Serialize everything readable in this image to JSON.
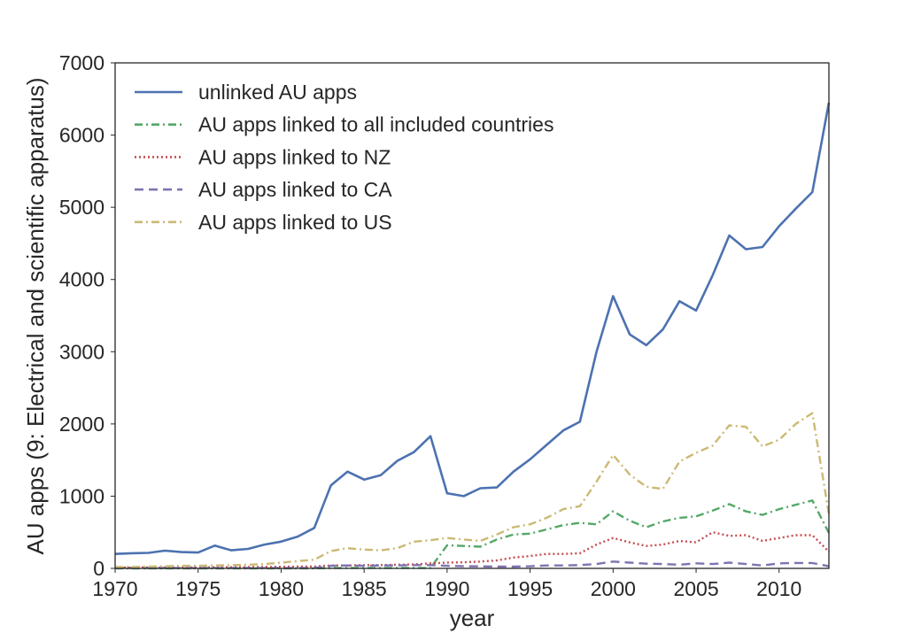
{
  "chart_data": {
    "type": "line",
    "xlabel": "year",
    "ylabel": "AU apps (9: Electrical and scientific apparatus)",
    "xlim": [
      1970,
      2013
    ],
    "ylim": [
      0,
      7000
    ],
    "xticks": [
      1970,
      1975,
      1980,
      1985,
      1990,
      1995,
      2000,
      2005,
      2010
    ],
    "yticks": [
      0,
      1000,
      2000,
      3000,
      4000,
      5000,
      6000,
      7000
    ],
    "grid": false,
    "legend_position": "top-left",
    "x": [
      1970,
      1971,
      1972,
      1973,
      1974,
      1975,
      1976,
      1977,
      1978,
      1979,
      1980,
      1981,
      1982,
      1983,
      1984,
      1985,
      1986,
      1987,
      1988,
      1989,
      1990,
      1991,
      1992,
      1993,
      1994,
      1995,
      1996,
      1997,
      1998,
      1999,
      2000,
      2001,
      2002,
      2003,
      2004,
      2005,
      2006,
      2007,
      2008,
      2009,
      2010,
      2011,
      2012,
      2013
    ],
    "series": [
      {
        "name": "unlinked AU apps",
        "color": "#4c72b0",
        "style": "solid",
        "values": [
          200,
          210,
          215,
          245,
          225,
          220,
          315,
          250,
          270,
          330,
          370,
          440,
          560,
          1150,
          1340,
          1230,
          1290,
          1490,
          1610,
          1830,
          1040,
          1000,
          1110,
          1120,
          1340,
          1510,
          1710,
          1910,
          2030,
          3000,
          3770,
          3240,
          3090,
          3310,
          3700,
          3570,
          4060,
          4610,
          4420,
          4450,
          4740,
          4980,
          5210,
          6450
        ]
      },
      {
        "name": "AU apps linked to all included countries",
        "color": "#55a868",
        "style": "dashdot",
        "values": [
          0,
          0,
          0,
          0,
          0,
          0,
          0,
          0,
          0,
          0,
          0,
          0,
          0,
          5,
          5,
          5,
          5,
          5,
          5,
          5,
          320,
          310,
          300,
          400,
          470,
          480,
          540,
          600,
          630,
          610,
          790,
          660,
          570,
          650,
          700,
          720,
          800,
          890,
          790,
          740,
          820,
          880,
          940,
          490
        ]
      },
      {
        "name": "AU apps linked to NZ",
        "color": "#c44e52",
        "style": "dotted",
        "values": [
          10,
          12,
          12,
          14,
          14,
          14,
          16,
          16,
          18,
          20,
          22,
          24,
          26,
          40,
          40,
          45,
          45,
          50,
          55,
          70,
          80,
          85,
          95,
          110,
          150,
          170,
          200,
          200,
          210,
          330,
          420,
          360,
          310,
          330,
          380,
          360,
          500,
          450,
          460,
          380,
          420,
          460,
          460,
          230
        ]
      },
      {
        "name": "AU apps linked to CA",
        "color": "#8172b2",
        "style": "dashed",
        "values": [
          5,
          5,
          5,
          5,
          5,
          5,
          5,
          5,
          5,
          5,
          5,
          5,
          5,
          35,
          40,
          35,
          40,
          40,
          45,
          45,
          35,
          30,
          28,
          25,
          25,
          30,
          40,
          40,
          45,
          60,
          95,
          80,
          65,
          60,
          50,
          70,
          60,
          80,
          60,
          40,
          70,
          75,
          75,
          30
        ]
      },
      {
        "name": "AU apps linked to US",
        "color": "#ccb974",
        "style": "dashdot",
        "values": [
          20,
          20,
          25,
          30,
          35,
          35,
          40,
          45,
          50,
          60,
          80,
          100,
          120,
          240,
          280,
          260,
          250,
          280,
          370,
          390,
          420,
          400,
          380,
          470,
          570,
          610,
          700,
          820,
          860,
          1200,
          1570,
          1300,
          1130,
          1100,
          1480,
          1600,
          1700,
          1980,
          1960,
          1690,
          1780,
          2000,
          2150,
          750
        ]
      }
    ]
  }
}
